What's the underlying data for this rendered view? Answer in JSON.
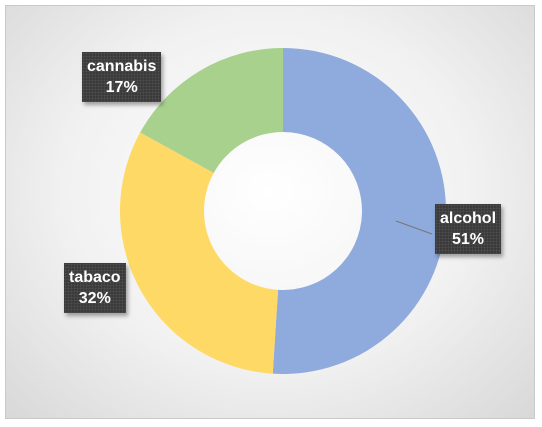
{
  "chart_data": {
    "type": "pie",
    "variant": "donut",
    "title": "",
    "legend": "none",
    "slices": [
      {
        "label": "alcohol",
        "value": 51,
        "percent_label": "51%",
        "color": "#8faadc"
      },
      {
        "label": "tabaco",
        "value": 32,
        "percent_label": "32%",
        "color": "#ffd966"
      },
      {
        "label": "cannabis",
        "value": 17,
        "percent_label": "17%",
        "color": "#a9d18e"
      }
    ]
  }
}
